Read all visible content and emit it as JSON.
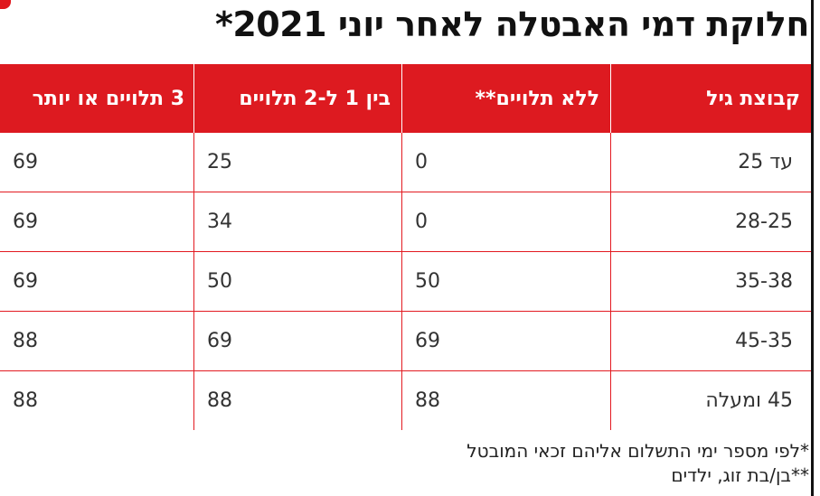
{
  "title": "חלוקת דמי האבטלה לאחר יוני 2021*",
  "table": {
    "headers": [
      "קבוצת גיל",
      "ללא תלויים**",
      "בין 1 ל-2 תלויים",
      "3 תלויים או יותר"
    ],
    "rows": [
      [
        "עד 25",
        "0",
        "25",
        "69"
      ],
      [
        "28-25",
        "0",
        "34",
        "69"
      ],
      [
        "35-38",
        "50",
        "50",
        "69"
      ],
      [
        "45-35",
        "69",
        "69",
        "88"
      ],
      [
        "45 ומעלה",
        "88",
        "88",
        "88"
      ]
    ]
  },
  "footnotes": [
    "*לפי מספר ימי התשלום אליהם זכאי המובטל",
    "**בן/בת זוג, ילדים"
  ],
  "colors": {
    "accent": "#dd1a20",
    "grid": "#e31a21"
  }
}
